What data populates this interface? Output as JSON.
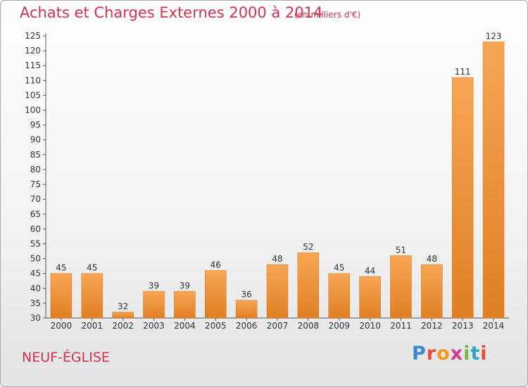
{
  "header": {
    "title": "Achats et Charges Externes 2000 à 2014",
    "subtitle": "(en milliers d'€)"
  },
  "footer": {
    "commune": "NEUF-ÉGLISE",
    "brand": "Proxiti"
  },
  "colors": {
    "title": "#d4314e",
    "bar_light": "#f7a655",
    "bar_dark": "#e07f24",
    "brand_letters": [
      "#3d86c8",
      "#e94b3c",
      "#f29a1e",
      "#d63b8c",
      "#7cb341",
      "#2aa6c9",
      "#e94b3c"
    ]
  },
  "chart_data": {
    "type": "bar",
    "categories": [
      "2000",
      "2001",
      "2002",
      "2003",
      "2004",
      "2005",
      "2006",
      "2007",
      "2008",
      "2009",
      "2010",
      "2011",
      "2012",
      "2013",
      "2014"
    ],
    "values": [
      45,
      45,
      32,
      39,
      39,
      46,
      36,
      48,
      52,
      45,
      44,
      51,
      48,
      111,
      123
    ],
    "data_labels": [
      "45",
      "45",
      "32",
      "39",
      "39",
      "46",
      "36",
      "48",
      "52",
      "45",
      "44",
      "51",
      "48",
      "111",
      "123"
    ],
    "y_ticks": [
      "30",
      "35",
      "40",
      "45",
      "50",
      "55",
      "60",
      "65",
      "70",
      "75",
      "80",
      "85",
      "90",
      "95",
      "100",
      "105",
      "110",
      "115",
      "120",
      "125"
    ],
    "ylim": [
      30,
      125
    ],
    "grid": false,
    "legend": "none"
  }
}
